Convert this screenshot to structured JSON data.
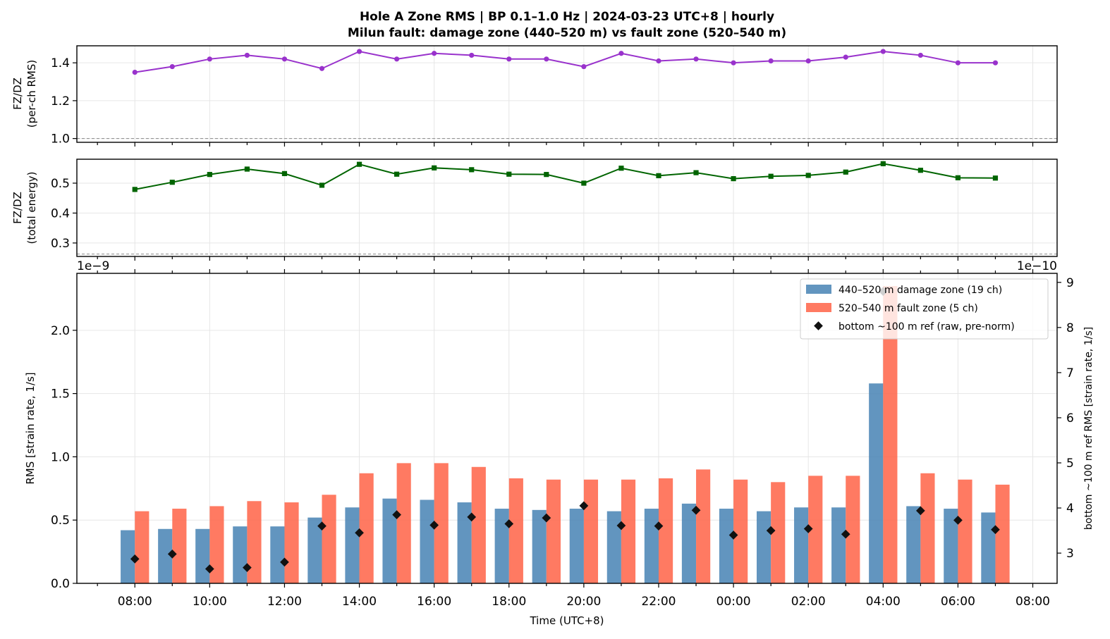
{
  "title_line1": "Hole A Zone RMS  |  BP 0.1–1.0 Hz  |  2024-03-23 UTC+8  |  hourly",
  "title_line2": "Milun fault: damage zone (440–520 m) vs fault zone (520–540 m)",
  "colors": {
    "ratio_rms": "#9932cc",
    "ratio_energy": "#006400",
    "damage": "#4682b4",
    "fault": "#ff6347",
    "ref": "#111111",
    "grid": "#e6e6e6"
  },
  "chart_data": [
    {
      "type": "line",
      "ylabel_line1": "FZ/DZ",
      "ylabel_line2": "(per-ch RMS)",
      "ylim": [
        0.98,
        1.49
      ],
      "yticks": [
        1.0,
        1.2,
        1.4
      ],
      "ytick_labels": [
        "1.0",
        "1.2",
        "1.4"
      ],
      "ref_line": 1.0,
      "x_hours": [
        0,
        1,
        2,
        3,
        4,
        5,
        6,
        7,
        8,
        9,
        10,
        11,
        12,
        13,
        14,
        15,
        16,
        17,
        18,
        19,
        20,
        21,
        22,
        23
      ],
      "series": [
        {
          "values": [
            1.35,
            1.38,
            1.42,
            1.44,
            1.42,
            1.37,
            1.46,
            1.42,
            1.45,
            1.44,
            1.42,
            1.42,
            1.38,
            1.45,
            1.41,
            1.42,
            1.4,
            1.41,
            1.41,
            1.43,
            1.46,
            1.44,
            1.4,
            1.4
          ]
        }
      ],
      "grid": true
    },
    {
      "type": "line",
      "ylabel_line1": "FZ/DZ",
      "ylabel_line2": "(total energy)",
      "ylim": [
        0.255,
        0.58
      ],
      "yticks": [
        0.3,
        0.4,
        0.5
      ],
      "ytick_labels": [
        "0.3",
        "0.4",
        "0.5"
      ],
      "ref_line": 0.263,
      "x_hours": [
        0,
        1,
        2,
        3,
        4,
        5,
        6,
        7,
        8,
        9,
        10,
        11,
        12,
        13,
        14,
        15,
        16,
        17,
        18,
        19,
        20,
        21,
        22,
        23
      ],
      "series": [
        {
          "values": [
            0.479,
            0.503,
            0.529,
            0.547,
            0.532,
            0.493,
            0.563,
            0.53,
            0.551,
            0.545,
            0.53,
            0.529,
            0.5,
            0.55,
            0.525,
            0.535,
            0.515,
            0.523,
            0.526,
            0.537,
            0.565,
            0.543,
            0.518,
            0.517
          ]
        }
      ],
      "grid": true
    },
    {
      "type": "bar",
      "xlabel": "Time (UTC+8)",
      "ylabel": "RMS  [strain rate, 1/s]",
      "ylabel_right": "bottom ~100 m ref RMS  [strain rate, 1/s]",
      "left_offset_label": "1e−9",
      "right_offset_label": "1e−10",
      "ylim": [
        0,
        2.45
      ],
      "yticks": [
        0.0,
        0.5,
        1.0,
        1.5,
        2.0
      ],
      "ytick_labels": [
        "0.0",
        "0.5",
        "1.0",
        "1.5",
        "2.0"
      ],
      "ylim_right": [
        2.33,
        9.2
      ],
      "yticks_right": [
        3,
        4,
        5,
        6,
        7,
        8,
        9
      ],
      "ytick_labels_right": [
        "3",
        "4",
        "5",
        "6",
        "7",
        "8",
        "9"
      ],
      "xlim_hours": [
        -1.55,
        24.65
      ],
      "xticks_hours": [
        0,
        2,
        4,
        6,
        8,
        10,
        12,
        14,
        16,
        18,
        20,
        22,
        24
      ],
      "xtick_labels": [
        "08:00",
        "10:00",
        "12:00",
        "14:00",
        "16:00",
        "18:00",
        "20:00",
        "22:00",
        "00:00",
        "02:00",
        "04:00",
        "06:00",
        "08:00"
      ],
      "x_hours": [
        0,
        1,
        2,
        3,
        4,
        5,
        6,
        7,
        8,
        9,
        10,
        11,
        12,
        13,
        14,
        15,
        16,
        17,
        18,
        19,
        20,
        21,
        22,
        23
      ],
      "series": [
        {
          "name": "440–520 m  damage zone (19 ch)",
          "values": [
            0.42,
            0.43,
            0.43,
            0.45,
            0.45,
            0.52,
            0.6,
            0.67,
            0.66,
            0.64,
            0.59,
            0.58,
            0.59,
            0.57,
            0.59,
            0.63,
            0.59,
            0.57,
            0.6,
            0.6,
            1.58,
            0.61,
            0.59,
            0.56
          ]
        },
        {
          "name": "520–540 m  fault zone (5 ch)",
          "values": [
            0.57,
            0.59,
            0.61,
            0.65,
            0.64,
            0.7,
            0.87,
            0.95,
            0.95,
            0.92,
            0.83,
            0.82,
            0.82,
            0.82,
            0.83,
            0.9,
            0.82,
            0.8,
            0.85,
            0.85,
            2.35,
            0.87,
            0.82,
            0.78
          ]
        },
        {
          "name": "bottom ~100 m ref (raw, pre-norm)",
          "axis": "right",
          "values": [
            2.87,
            2.98,
            2.65,
            2.68,
            2.8,
            3.6,
            3.45,
            3.85,
            3.62,
            3.8,
            3.65,
            3.78,
            4.05,
            3.61,
            3.6,
            3.95,
            3.4,
            3.5,
            3.54,
            3.42,
            8.8,
            3.94,
            3.73,
            3.52
          ]
        }
      ],
      "legend_position": "upper-right",
      "grid": true
    }
  ]
}
